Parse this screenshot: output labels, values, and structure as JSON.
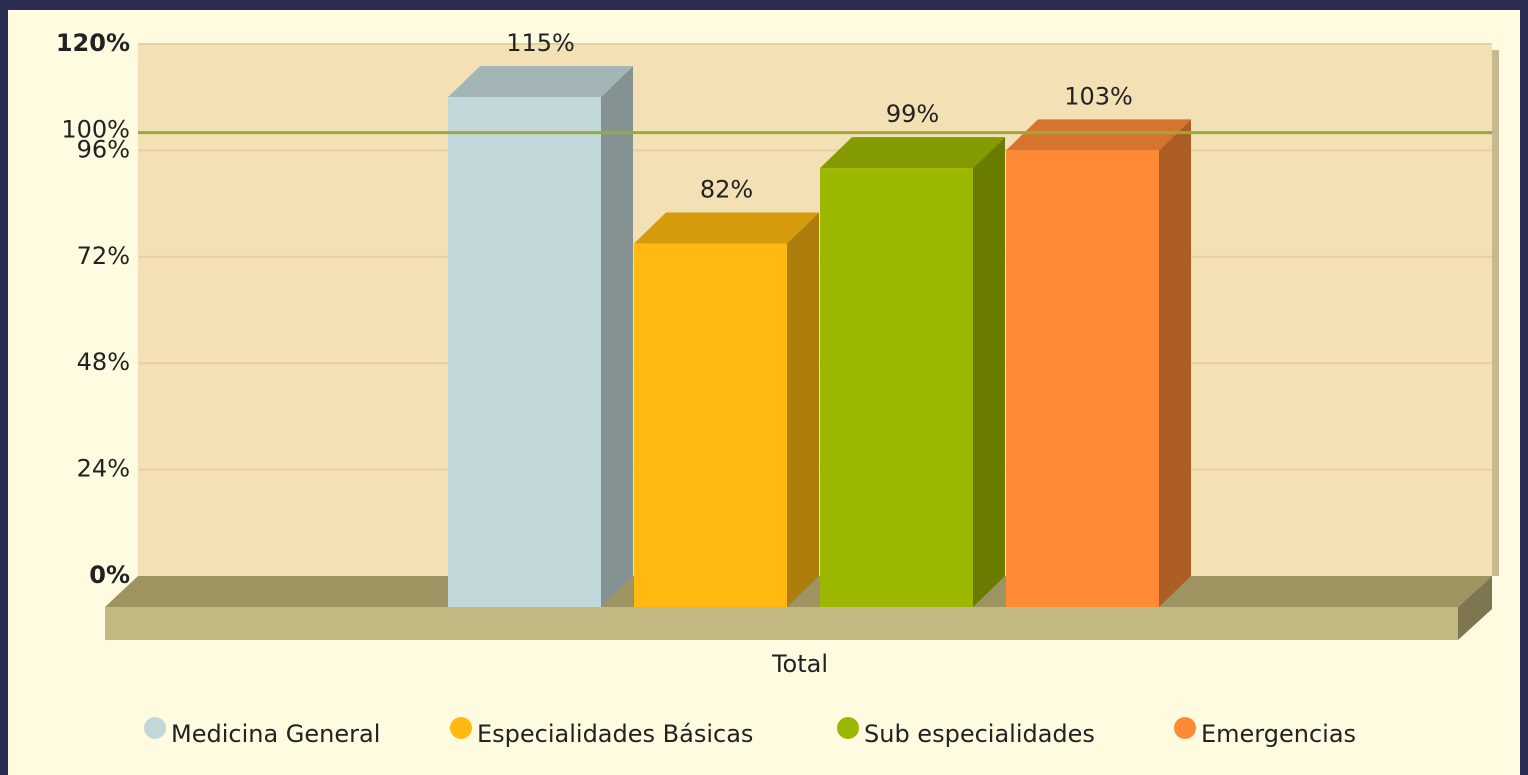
{
  "chart_data": {
    "type": "bar3d",
    "categories": [
      "Total"
    ],
    "series": [
      {
        "name": "Medicina General",
        "color": "#c2d7d9",
        "values": [
          115
        ],
        "value_labels": [
          "115%"
        ]
      },
      {
        "name": "Especialidades Básicas",
        "color": "#ffb910",
        "values": [
          82
        ],
        "value_labels": [
          "82%"
        ]
      },
      {
        "name": "Sub especialidades",
        "color": "#9cb700",
        "values": [
          99
        ],
        "value_labels": [
          "99%"
        ]
      },
      {
        "name": "Emergencias",
        "color": "#ff8a35",
        "values": [
          103
        ],
        "value_labels": [
          "103%"
        ]
      }
    ],
    "ylim": [
      0,
      120
    ],
    "yticks": [
      {
        "value": 0,
        "label": "0%"
      },
      {
        "value": 24,
        "label": "24%"
      },
      {
        "value": 48,
        "label": "48%"
      },
      {
        "value": 72,
        "label": "72%"
      },
      {
        "value": 96,
        "label": "96%"
      },
      {
        "value": 120,
        "label": "120%"
      }
    ],
    "grid": true,
    "reference_line": {
      "value": 100,
      "label": "100%",
      "color": "#9aaa3a"
    },
    "legend": "bottom"
  }
}
